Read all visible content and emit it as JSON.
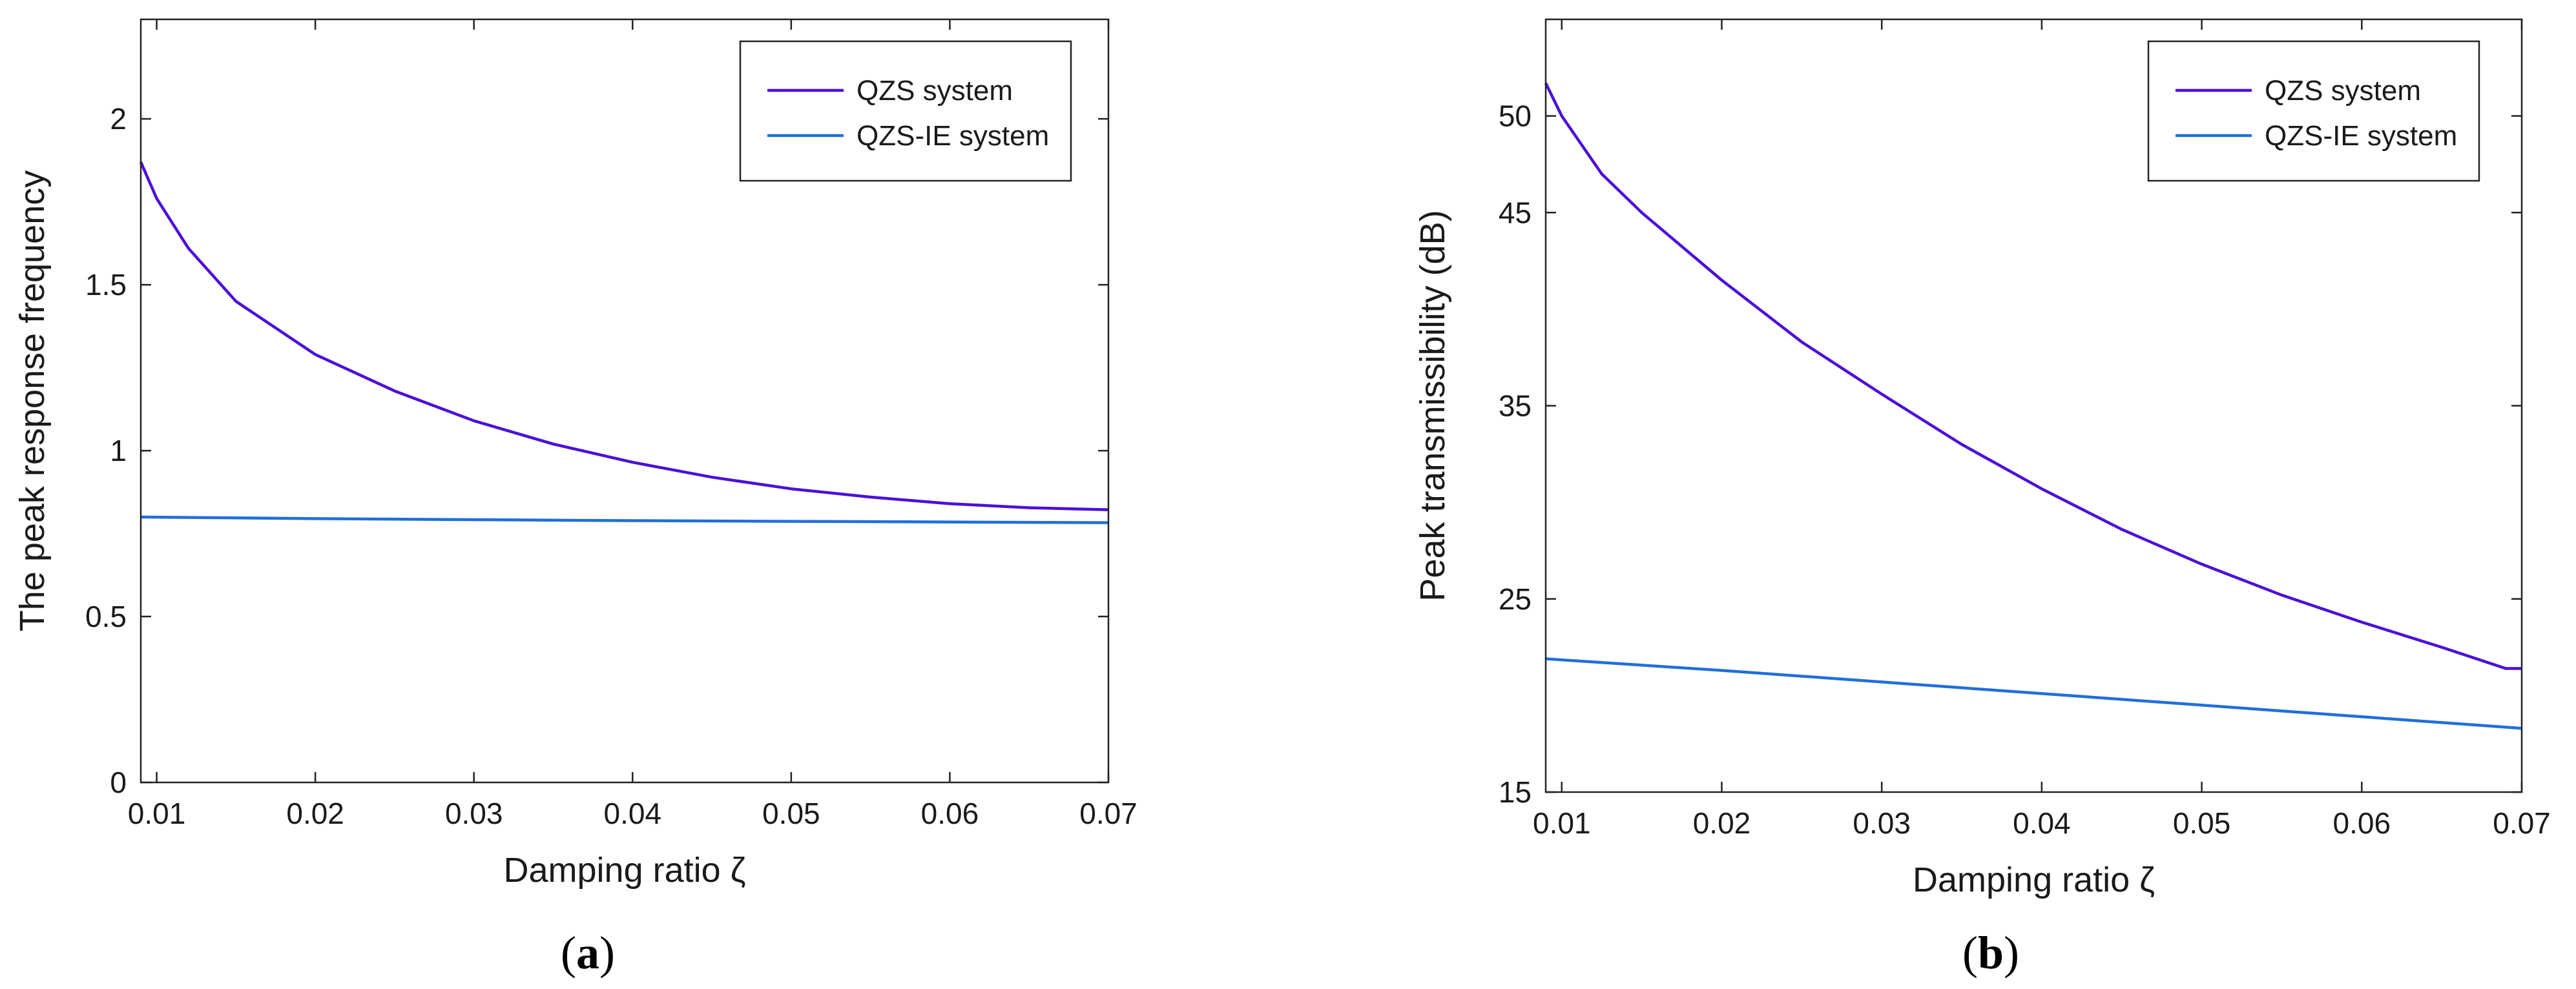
{
  "chart_data": [
    {
      "type": "line",
      "panel_label": "a",
      "xlabel": "Damping ratio ζ",
      "ylabel": "The peak response frequency",
      "xlim": [
        0.009,
        0.07
      ],
      "ylim": [
        0,
        2.3
      ],
      "xticks": [
        0.01,
        0.02,
        0.03,
        0.04,
        0.05,
        0.06,
        0.07
      ],
      "xtick_labels": [
        "0.01",
        "0.02",
        "0.03",
        "0.04",
        "0.05",
        "0.06",
        "0.07"
      ],
      "yticks": [
        0,
        0.5,
        1,
        1.5,
        2
      ],
      "ytick_labels": [
        "0",
        "0.5",
        "1",
        "1.5",
        "2"
      ],
      "legend_position": "top-right",
      "series": [
        {
          "name": "QZS system",
          "color": "#4b10d8",
          "x": [
            0.009,
            0.01,
            0.012,
            0.015,
            0.02,
            0.025,
            0.03,
            0.035,
            0.04,
            0.045,
            0.05,
            0.055,
            0.06,
            0.065,
            0.07
          ],
          "y": [
            1.87,
            1.76,
            1.61,
            1.45,
            1.29,
            1.18,
            1.09,
            1.02,
            0.965,
            0.92,
            0.885,
            0.86,
            0.84,
            0.828,
            0.822
          ]
        },
        {
          "name": "QZS-IE system",
          "color": "#1f6fd9",
          "x": [
            0.009,
            0.02,
            0.03,
            0.04,
            0.05,
            0.06,
            0.07
          ],
          "y": [
            0.8,
            0.795,
            0.792,
            0.789,
            0.787,
            0.785,
            0.783
          ]
        }
      ]
    },
    {
      "type": "line",
      "panel_label": "b",
      "xlabel": "Damping ratio ζ",
      "ylabel": "Peak  transmissibility (dB)",
      "xlim": [
        0.009,
        0.07
      ],
      "ylim": [
        15,
        55
      ],
      "yticks": [
        15,
        25,
        35,
        45,
        50
      ],
      "ytick_labels": [
        "15",
        "25",
        "35",
        "45",
        "50"
      ],
      "xticks": [
        0.01,
        0.02,
        0.03,
        0.04,
        0.05,
        0.06,
        0.07
      ],
      "xtick_labels": [
        "0.01",
        "0.02",
        "0.03",
        "0.04",
        "0.05",
        "0.06",
        "0.07"
      ],
      "legend_position": "top-right",
      "series": [
        {
          "name": "QZS system",
          "color": "#4b10d8",
          "x": [
            0.009,
            0.01,
            0.0125,
            0.015,
            0.02,
            0.025,
            0.03,
            0.035,
            0.04,
            0.045,
            0.05,
            0.055,
            0.06,
            0.065,
            0.069,
            0.07
          ],
          "y": [
            51.7,
            50.0,
            47.0,
            45.0,
            41.5,
            38.3,
            35.6,
            33.0,
            30.7,
            28.6,
            26.8,
            25.2,
            23.8,
            22.5,
            21.4,
            21.4
          ]
        },
        {
          "name": "QZS-IE system",
          "color": "#1f6fd9",
          "x": [
            0.009,
            0.02,
            0.03,
            0.04,
            0.05,
            0.06,
            0.07
          ],
          "y": [
            21.9,
            21.3,
            20.7,
            20.1,
            19.5,
            18.9,
            18.3
          ]
        }
      ]
    }
  ]
}
